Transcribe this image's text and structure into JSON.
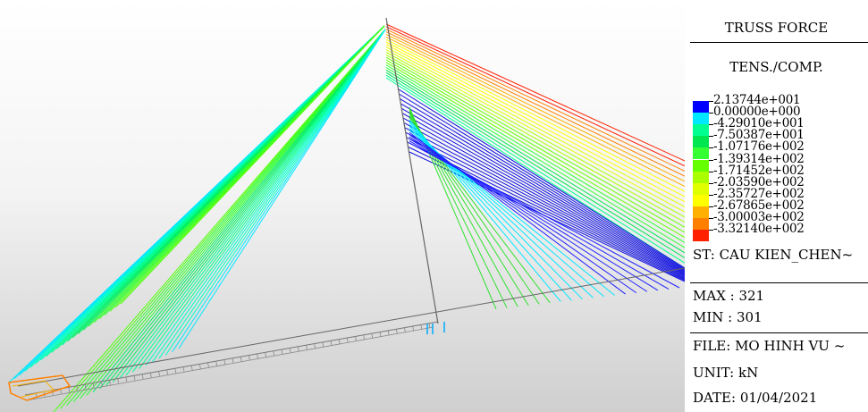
{
  "legend": {
    "title": "TRUSS FORCE",
    "subtitle": "TENS./COMP.",
    "scale": [
      {
        "value": "2.13744e+001",
        "color": "#0000ff"
      },
      {
        "value": "0.00000e+000",
        "color": "#00e8ff"
      },
      {
        "value": "-4.29010e+001",
        "color": "#00ff90"
      },
      {
        "value": "-7.50387e+001",
        "color": "#00e650"
      },
      {
        "value": "-1.07176e+002",
        "color": "#33ff33"
      },
      {
        "value": "-1.39314e+002",
        "color": "#66ff00"
      },
      {
        "value": "-1.71452e+002",
        "color": "#aaff00"
      },
      {
        "value": "-2.03590e+002",
        "color": "#e0ff00"
      },
      {
        "value": "-2.35727e+002",
        "color": "#ffff00"
      },
      {
        "value": "-2.67865e+002",
        "color": "#ffb000"
      },
      {
        "value": "-3.00003e+002",
        "color": "#ff8000"
      },
      {
        "value": "-3.32140e+002",
        "color": "#ff2000"
      }
    ],
    "stage": "ST: CAU KIEN_CHEN~",
    "max": "MAX : 321",
    "min": "MIN : 301",
    "file": "FILE: MO HINH VU ~",
    "unit": "UNIT: kN",
    "date": "DATE: 01/04/2021"
  }
}
